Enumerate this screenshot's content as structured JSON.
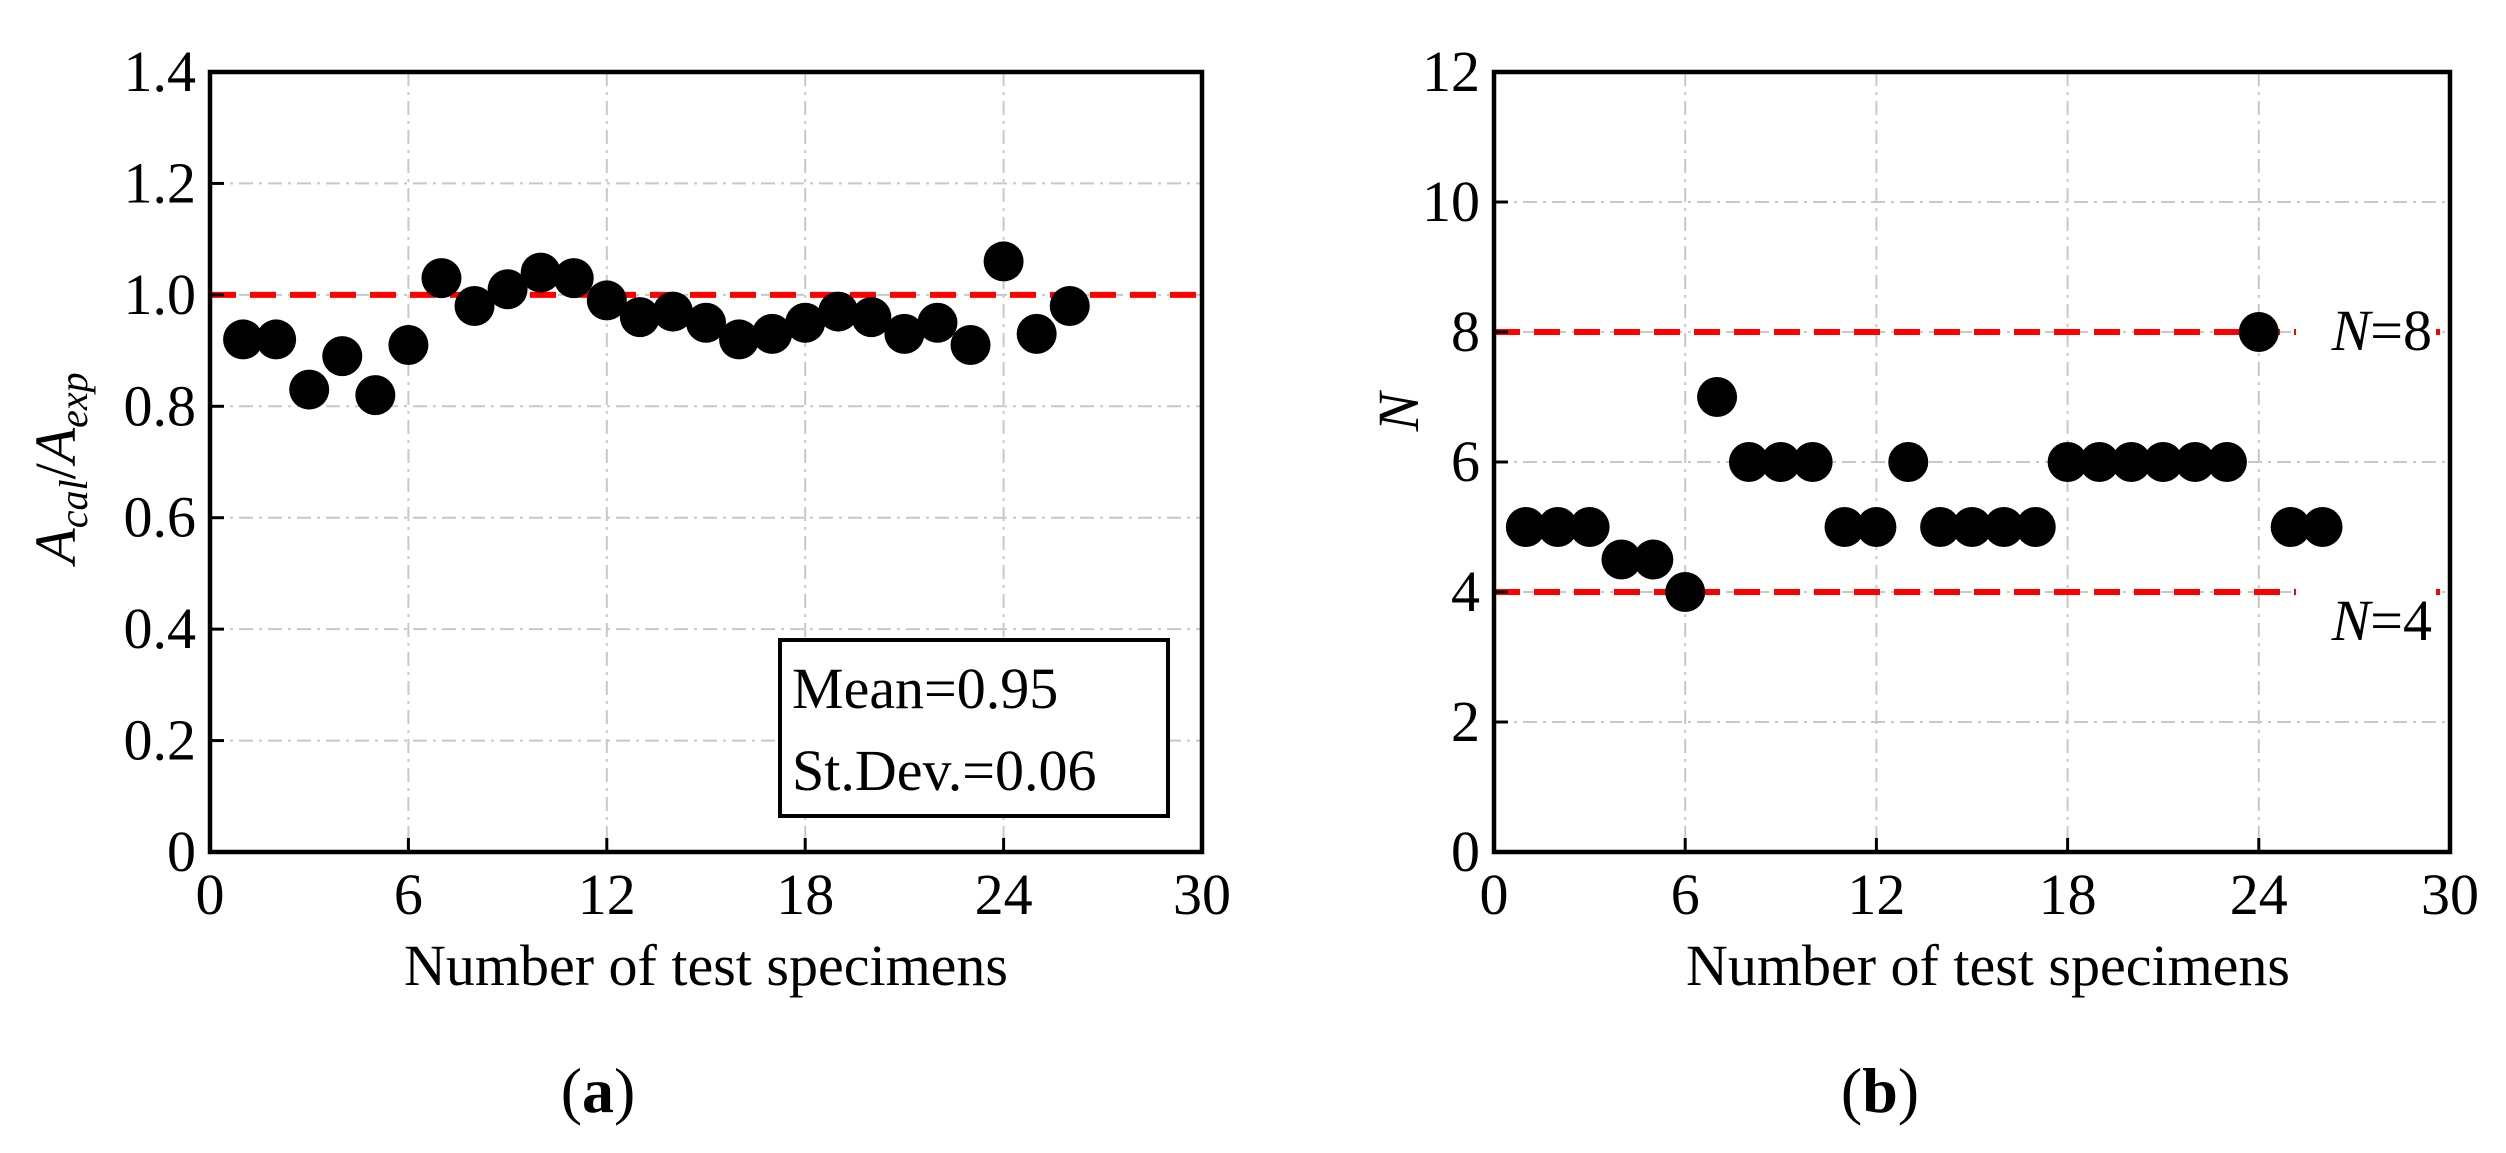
{
  "chart_data": [
    {
      "panel": "a",
      "type": "scatter",
      "xlabel": "Number of test specimens",
      "ylabel": {
        "main": "A",
        "sub1": "cal",
        "sep": "/",
        "main2": "A",
        "sub2": "exp"
      },
      "xlim": [
        0,
        30
      ],
      "ylim": [
        0,
        1.4
      ],
      "xticks": [
        0,
        6,
        12,
        18,
        24,
        30
      ],
      "yticks": [
        0,
        0.2,
        0.4,
        0.6,
        0.8,
        1.0,
        1.2,
        1.4
      ],
      "ytick_labels": [
        "0",
        "0.2",
        "0.4",
        "0.6",
        "0.8",
        "1.0",
        "1.2",
        "1.4"
      ],
      "grid": true,
      "x": [
        1,
        2,
        3,
        4,
        5,
        6,
        7,
        8,
        9,
        10,
        11,
        12,
        13,
        14,
        15,
        16,
        17,
        18,
        19,
        20,
        21,
        22,
        23,
        24,
        25,
        26
      ],
      "y": [
        0.92,
        0.92,
        0.83,
        0.89,
        0.82,
        0.91,
        1.03,
        0.98,
        1.01,
        1.04,
        1.03,
        0.99,
        0.96,
        0.97,
        0.95,
        0.92,
        0.93,
        0.95,
        0.97,
        0.96,
        0.93,
        0.95,
        0.91,
        1.06,
        0.93,
        0.98
      ],
      "reference_lines": [
        {
          "y": 1.0,
          "color": "#ff0000",
          "style": "dashed"
        }
      ],
      "stats_box": {
        "mean": "Mean=0.95",
        "stdev": "St.Dev.=0.06"
      },
      "panel_label": {
        "open": "(",
        "letter": "a",
        "close": ")"
      }
    },
    {
      "panel": "b",
      "type": "scatter",
      "xlabel": "Number of test specimens",
      "ylabel": "N",
      "xlim": [
        0,
        30
      ],
      "ylim": [
        0,
        12
      ],
      "xticks": [
        0,
        6,
        12,
        18,
        24,
        30
      ],
      "yticks": [
        0,
        2,
        4,
        6,
        8,
        10,
        12
      ],
      "ytick_labels": [
        "0",
        "2",
        "4",
        "6",
        "8",
        "10",
        "12"
      ],
      "grid": true,
      "x": [
        1,
        2,
        3,
        4,
        5,
        6,
        7,
        8,
        9,
        10,
        11,
        12,
        13,
        14,
        15,
        16,
        17,
        18,
        19,
        20,
        21,
        22,
        23,
        24,
        25,
        26
      ],
      "y": [
        5,
        5,
        5,
        4.5,
        4.5,
        4,
        7,
        6,
        6,
        6,
        5,
        5,
        6,
        5,
        5,
        5,
        5,
        6,
        6,
        6,
        6,
        6,
        6,
        8,
        5,
        5
      ],
      "reference_lines": [
        {
          "y": 8,
          "color": "#ff0000",
          "style": "dashed",
          "label_var": "N",
          "label_rest": "=8"
        },
        {
          "y": 4,
          "color": "#ff0000",
          "style": "dashed",
          "label_var": "N",
          "label_rest": "=4"
        }
      ],
      "panel_label": {
        "open": "(",
        "letter": "b",
        "close": ")"
      }
    }
  ]
}
